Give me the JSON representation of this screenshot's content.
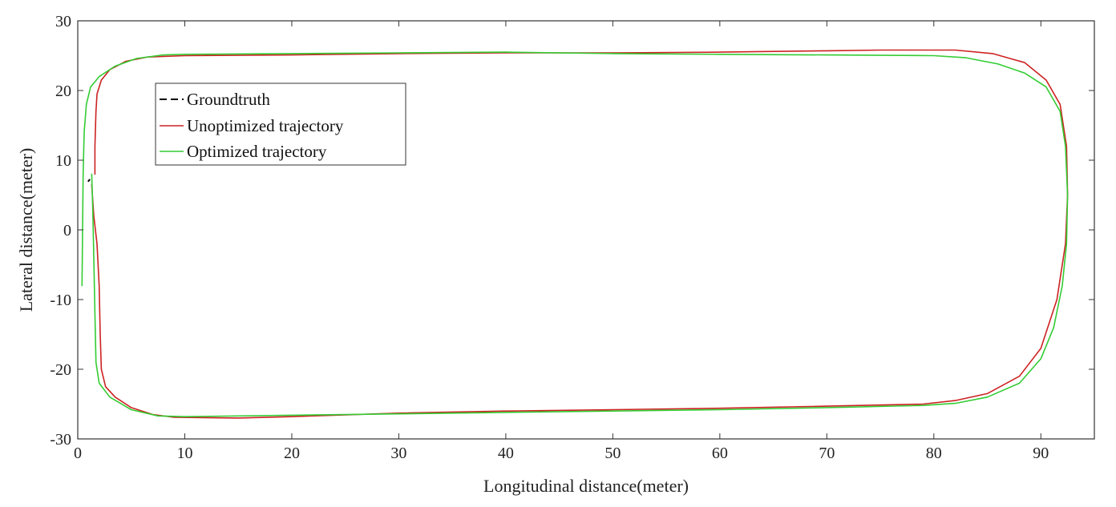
{
  "chart_data": {
    "type": "line",
    "xlabel": "Longitudinal distance(meter)",
    "ylabel": "Lateral distance(meter)",
    "xlim": [
      0,
      95
    ],
    "ylim": [
      -30,
      30
    ],
    "x_ticks": [
      0,
      10,
      20,
      30,
      40,
      50,
      60,
      70,
      80,
      90
    ],
    "y_ticks": [
      -30,
      -20,
      -10,
      0,
      10,
      20,
      30
    ],
    "grid": false,
    "legend_position": "top-left",
    "series": [
      {
        "name": "Groundtruth",
        "color": "#000000",
        "dash": true,
        "points": [
          [
            1.0,
            7.0
          ],
          [
            1.1,
            7.2
          ]
        ]
      },
      {
        "name": "Unoptimized trajectory",
        "color": "#cc2222",
        "dash": false,
        "points": [
          [
            1.3,
            6.5
          ],
          [
            1.5,
            2.0
          ],
          [
            1.8,
            -2.0
          ],
          [
            2.0,
            -8.0
          ],
          [
            2.1,
            -15.0
          ],
          [
            2.2,
            -20.0
          ],
          [
            2.6,
            -22.5
          ],
          [
            3.5,
            -24.0
          ],
          [
            5.0,
            -25.5
          ],
          [
            7.0,
            -26.5
          ],
          [
            9.0,
            -26.9
          ],
          [
            15.0,
            -27.0
          ],
          [
            20.0,
            -26.8
          ],
          [
            30.0,
            -26.3
          ],
          [
            40.0,
            -26.0
          ],
          [
            50.0,
            -25.8
          ],
          [
            60.0,
            -25.6
          ],
          [
            70.0,
            -25.3
          ],
          [
            79.0,
            -25.0
          ],
          [
            82.0,
            -24.5
          ],
          [
            85.0,
            -23.5
          ],
          [
            88.0,
            -21.0
          ],
          [
            90.0,
            -17.0
          ],
          [
            91.5,
            -10.0
          ],
          [
            92.3,
            -2.0
          ],
          [
            92.5,
            5.0
          ],
          [
            92.4,
            12.0
          ],
          [
            91.8,
            18.0
          ],
          [
            90.5,
            21.5
          ],
          [
            88.5,
            24.0
          ],
          [
            85.5,
            25.3
          ],
          [
            82.0,
            25.8
          ],
          [
            75.0,
            25.8
          ],
          [
            70.0,
            25.7
          ],
          [
            60.0,
            25.5
          ],
          [
            50.0,
            25.4
          ],
          [
            40.0,
            25.4
          ],
          [
            30.0,
            25.3
          ],
          [
            20.0,
            25.1
          ],
          [
            10.0,
            25.0
          ],
          [
            6.5,
            24.8
          ],
          [
            4.5,
            24.2
          ],
          [
            3.0,
            23.0
          ],
          [
            2.2,
            21.5
          ],
          [
            1.8,
            19.5
          ],
          [
            1.7,
            17.0
          ],
          [
            1.6,
            12.0
          ],
          [
            1.6,
            8.0
          ]
        ]
      },
      {
        "name": "Optimized trajectory",
        "color": "#33cc33",
        "dash": false,
        "points": [
          [
            0.4,
            -8.0
          ],
          [
            0.45,
            0.0
          ],
          [
            0.5,
            8.0
          ],
          [
            0.6,
            14.0
          ],
          [
            0.8,
            18.0
          ],
          [
            1.2,
            20.5
          ],
          [
            2.0,
            22.0
          ],
          [
            3.5,
            23.5
          ],
          [
            5.5,
            24.6
          ],
          [
            8.0,
            25.1
          ],
          [
            10.0,
            25.2
          ],
          [
            20.0,
            25.3
          ],
          [
            30.0,
            25.4
          ],
          [
            40.0,
            25.5
          ],
          [
            50.0,
            25.3
          ],
          [
            60.0,
            25.2
          ],
          [
            70.0,
            25.1
          ],
          [
            80.0,
            25.0
          ],
          [
            83.0,
            24.7
          ],
          [
            86.0,
            23.8
          ],
          [
            88.5,
            22.5
          ],
          [
            90.5,
            20.5
          ],
          [
            91.8,
            17.0
          ],
          [
            92.3,
            12.0
          ],
          [
            92.5,
            5.0
          ],
          [
            92.4,
            -2.0
          ],
          [
            92.0,
            -8.0
          ],
          [
            91.2,
            -14.0
          ],
          [
            90.0,
            -18.5
          ],
          [
            88.0,
            -22.0
          ],
          [
            85.0,
            -24.0
          ],
          [
            82.0,
            -24.9
          ],
          [
            79.0,
            -25.2
          ],
          [
            70.0,
            -25.5
          ],
          [
            60.0,
            -25.8
          ],
          [
            50.0,
            -26.0
          ],
          [
            40.0,
            -26.2
          ],
          [
            30.0,
            -26.4
          ],
          [
            20.0,
            -26.6
          ],
          [
            10.0,
            -26.8
          ],
          [
            7.5,
            -26.7
          ],
          [
            5.0,
            -25.8
          ],
          [
            3.0,
            -24.0
          ],
          [
            2.0,
            -22.0
          ],
          [
            1.7,
            -19.0
          ],
          [
            1.6,
            -12.0
          ],
          [
            1.5,
            -4.0
          ],
          [
            1.4,
            3.0
          ],
          [
            1.3,
            8.0
          ]
        ]
      }
    ]
  }
}
